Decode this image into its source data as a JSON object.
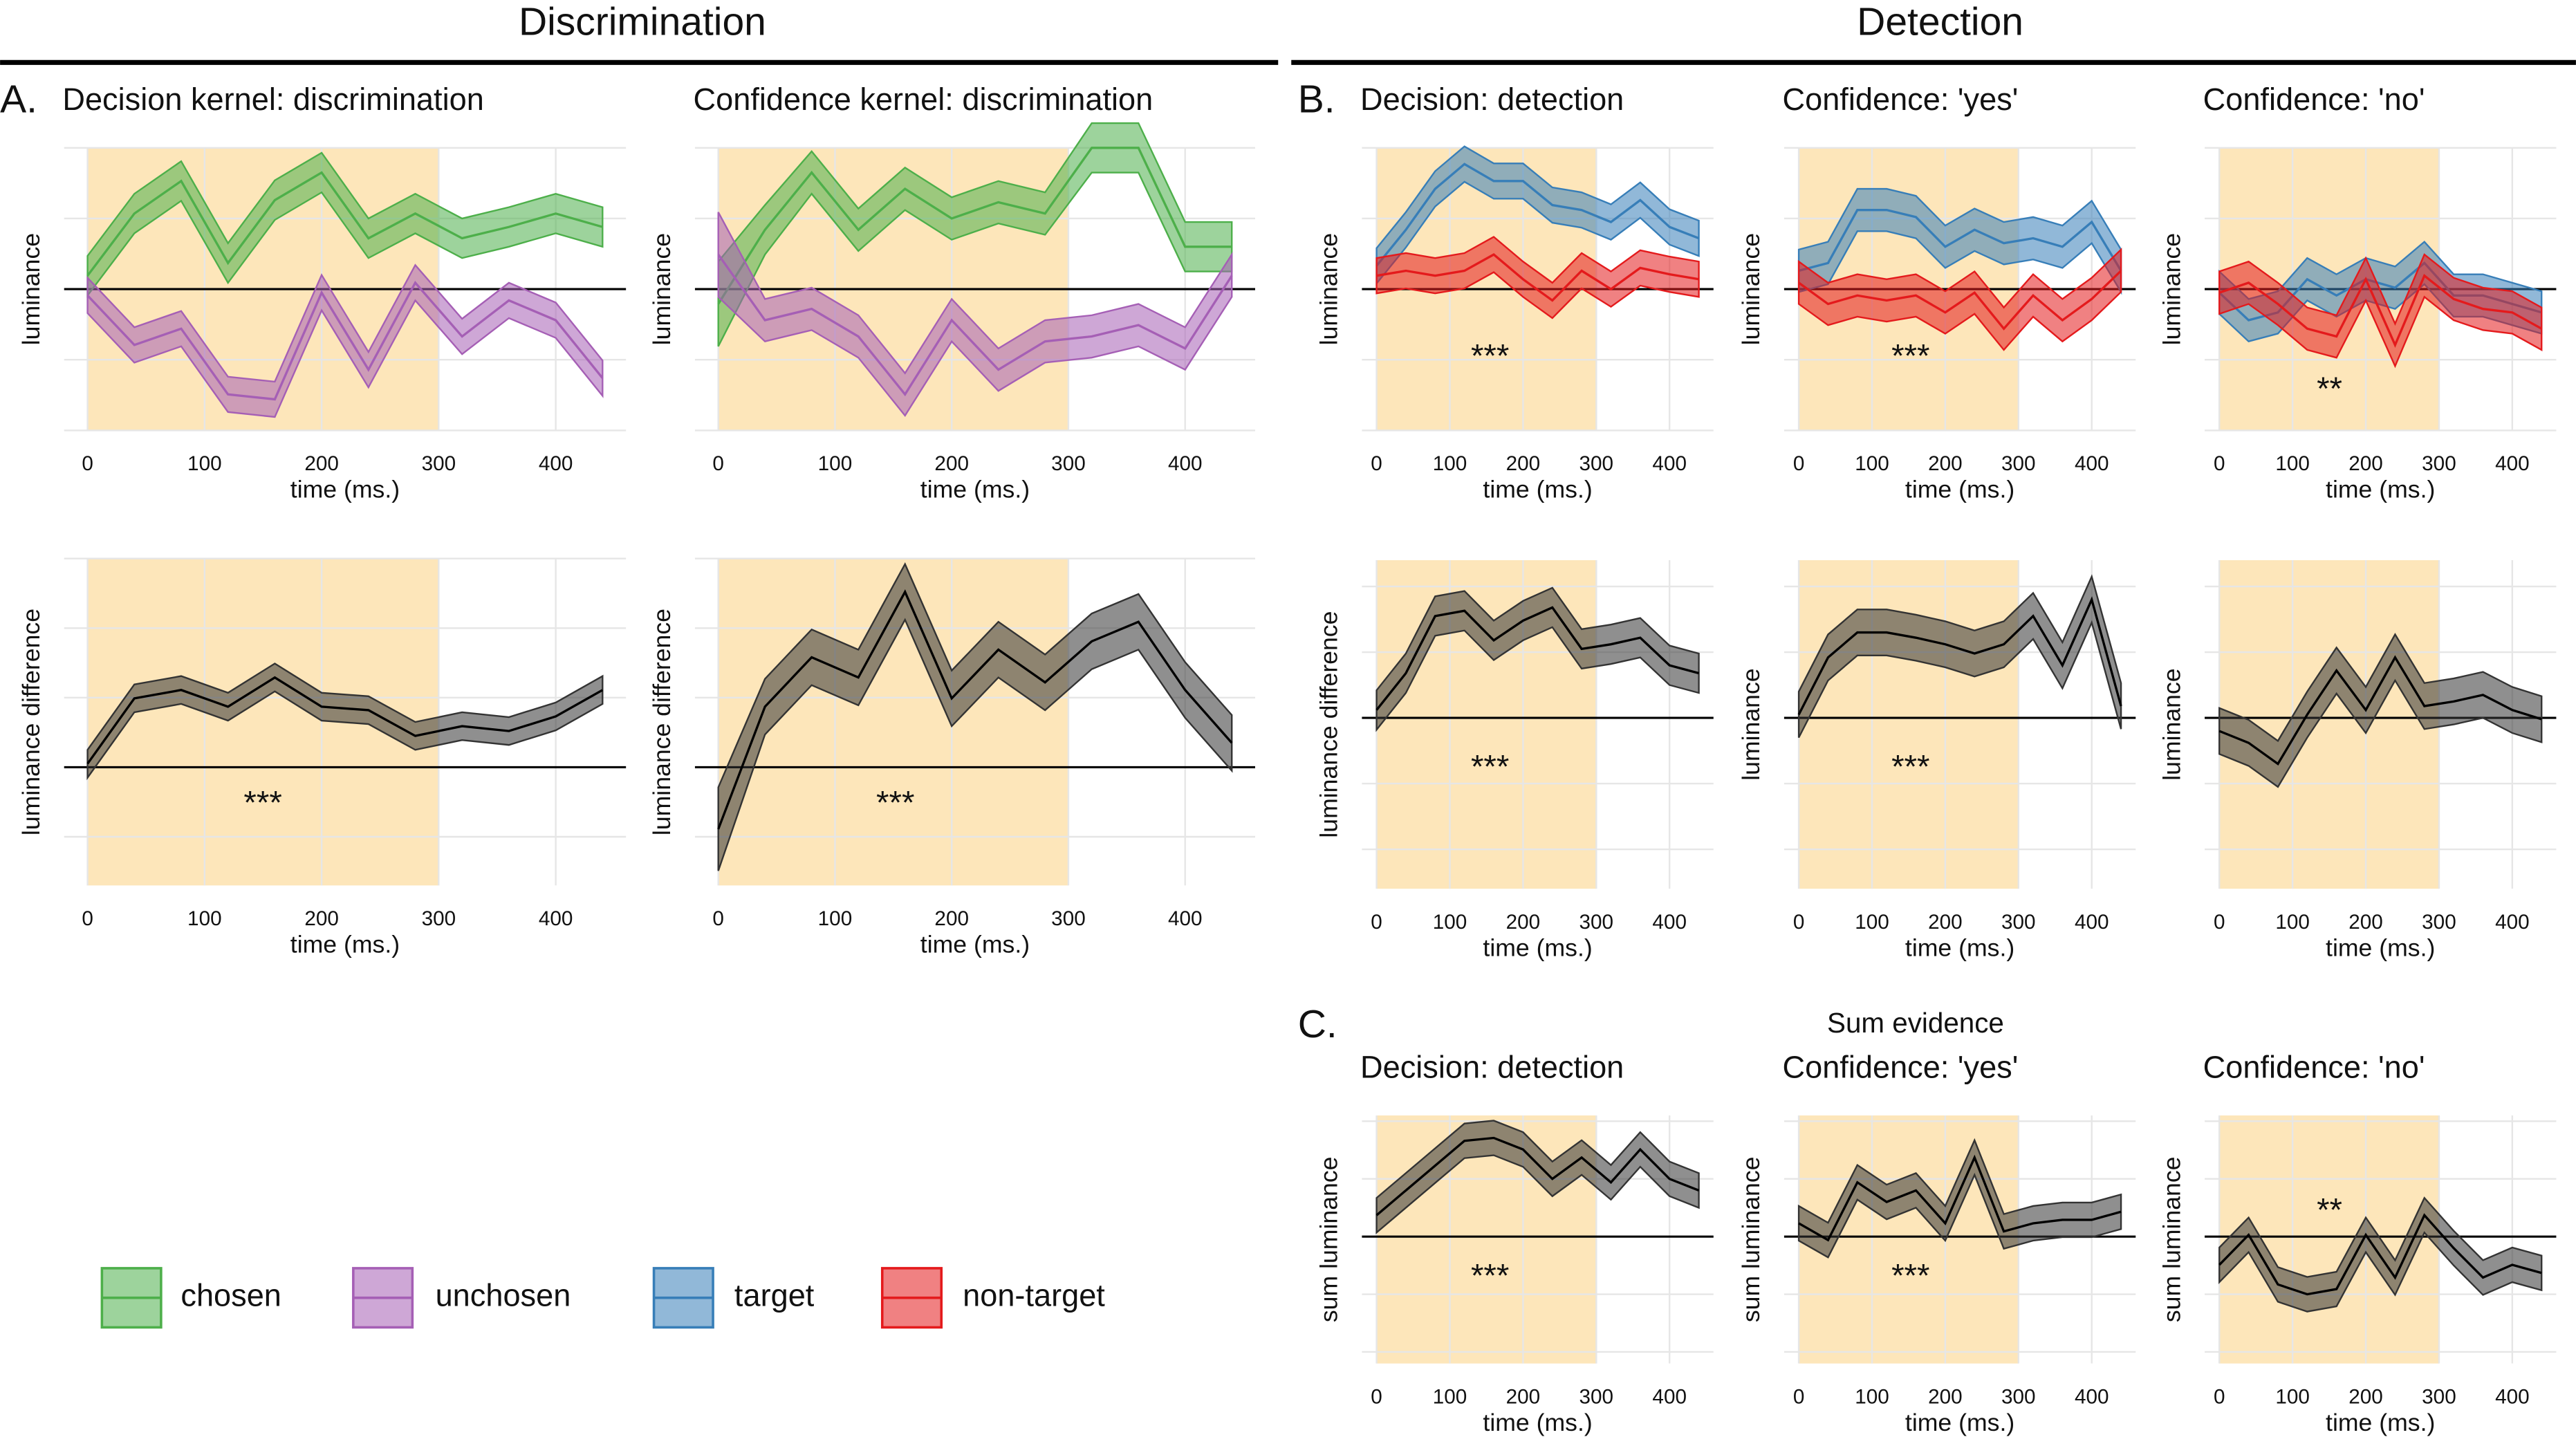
{
  "headers": {
    "left": "Discrimination",
    "right": "Detection",
    "letter_a": "A.",
    "letter_b": "B.",
    "letter_c": "C.",
    "sum_evidence": "Sum evidence"
  },
  "legend": [
    {
      "name": "chosen",
      "color": "#4daf4a"
    },
    {
      "name": "unchosen",
      "color": "#a55fb5"
    },
    {
      "name": "target",
      "color": "#377eb8"
    },
    {
      "name": "non-target",
      "color": "#e41a1c"
    }
  ],
  "chart_data": [
    {
      "type": "line",
      "title": "Decision kernel: discrimination",
      "xlabel": "time (ms.)",
      "ylabel": "luminance",
      "x": [
        0,
        40,
        80,
        120,
        160,
        200,
        240,
        280,
        320,
        360,
        400,
        440
      ],
      "xlim": [
        -20,
        460
      ],
      "xticks": [
        0,
        100,
        200,
        300,
        400
      ],
      "ylim": [
        -2,
        2
      ],
      "yticks": [
        -2,
        -1,
        0,
        1,
        2
      ],
      "highlight": [
        0,
        300
      ],
      "highlight_color": "#fbd58c",
      "grid": true,
      "series": [
        {
          "name": "chosen",
          "color": "#4daf4a",
          "values": [
            0.19,
            1.07,
            1.53,
            0.37,
            1.26,
            1.65,
            0.72,
            1.07,
            0.72,
            0.88,
            1.07,
            0.88
          ],
          "errors": [
            0.28,
            0.28,
            0.28,
            0.28,
            0.28,
            0.28,
            0.28,
            0.28,
            0.28,
            0.28,
            0.28,
            0.28
          ]
        },
        {
          "name": "unchosen",
          "color": "#a55fb5",
          "values": [
            -0.09,
            -0.79,
            -0.56,
            -1.49,
            -1.56,
            -0.05,
            -1.14,
            0.09,
            -0.67,
            -0.16,
            -0.44,
            -1.26
          ],
          "errors": [
            0.25,
            0.25,
            0.25,
            0.25,
            0.25,
            0.25,
            0.25,
            0.25,
            0.25,
            0.25,
            0.25,
            0.25
          ]
        }
      ]
    },
    {
      "type": "line",
      "title": "Confidence kernel: discrimination",
      "xlabel": "time (ms.)",
      "ylabel": "luminance",
      "x": [
        0,
        40,
        80,
        120,
        160,
        200,
        240,
        280,
        320,
        360,
        400,
        440
      ],
      "xlim": [
        -20,
        460
      ],
      "xticks": [
        0,
        100,
        200,
        300,
        400
      ],
      "ylim": [
        -2,
        2
      ],
      "yticks": [
        -2,
        -1,
        0,
        1,
        2
      ],
      "highlight": [
        0,
        300
      ],
      "highlight_color": "#fbd58c",
      "grid": true,
      "series": [
        {
          "name": "chosen",
          "color": "#4daf4a",
          "values": [
            -0.21,
            0.84,
            1.65,
            0.84,
            1.42,
            1.0,
            1.23,
            1.07,
            2.0,
            2.0,
            0.6,
            0.6
          ],
          "errors": [
            0.6,
            0.35,
            0.3,
            0.3,
            0.3,
            0.3,
            0.3,
            0.3,
            0.35,
            0.35,
            0.35,
            0.35
          ]
        },
        {
          "name": "unchosen",
          "color": "#a55fb5",
          "values": [
            0.49,
            -0.44,
            -0.28,
            -0.67,
            -1.49,
            -0.44,
            -1.14,
            -0.74,
            -0.67,
            -0.51,
            -0.84,
            0.19
          ],
          "errors": [
            0.6,
            0.3,
            0.3,
            0.3,
            0.3,
            0.3,
            0.3,
            0.3,
            0.3,
            0.3,
            0.3,
            0.3
          ]
        }
      ]
    },
    {
      "type": "line",
      "xlabel": "time (ms.)",
      "ylabel": "luminance difference",
      "annotation": "***",
      "x": [
        0,
        40,
        80,
        120,
        160,
        200,
        240,
        280,
        320,
        360,
        400,
        440
      ],
      "xlim": [
        -20,
        460
      ],
      "xticks": [
        0,
        100,
        200,
        300,
        400
      ],
      "ylim": [
        -1.7,
        3
      ],
      "yticks": [
        -1,
        0,
        1,
        2,
        3
      ],
      "highlight": [
        0,
        300
      ],
      "highlight_color": "#fbd58c",
      "grid": true,
      "series": [
        {
          "color": "#333333",
          "values": [
            0.05,
            0.99,
            1.11,
            0.87,
            1.29,
            0.87,
            0.82,
            0.45,
            0.59,
            0.52,
            0.73,
            1.11
          ],
          "errors": [
            0.2,
            0.2,
            0.2,
            0.2,
            0.2,
            0.2,
            0.2,
            0.2,
            0.2,
            0.2,
            0.2,
            0.2
          ]
        }
      ]
    },
    {
      "type": "line",
      "xlabel": "time (ms.)",
      "ylabel": "luminance difference",
      "annotation": "***",
      "x": [
        0,
        40,
        80,
        120,
        160,
        200,
        240,
        280,
        320,
        360,
        400,
        440
      ],
      "xlim": [
        -20,
        460
      ],
      "xticks": [
        0,
        100,
        200,
        300,
        400
      ],
      "ylim": [
        -1.7,
        3
      ],
      "yticks": [
        -1,
        0,
        1,
        2,
        3
      ],
      "highlight": [
        0,
        300
      ],
      "highlight_color": "#fbd58c",
      "grid": true,
      "series": [
        {
          "color": "#333333",
          "values": [
            -0.89,
            0.87,
            1.58,
            1.29,
            2.52,
            0.99,
            1.69,
            1.22,
            1.81,
            2.09,
            1.11,
            0.35
          ],
          "errors": [
            0.6,
            0.4,
            0.4,
            0.4,
            0.4,
            0.4,
            0.4,
            0.4,
            0.4,
            0.4,
            0.4,
            0.4
          ]
        }
      ]
    },
    {
      "type": "line",
      "title": "Decision: detection",
      "xlabel": "time (ms.)",
      "ylabel": "luminance",
      "annotation": "***",
      "x": [
        0,
        40,
        80,
        120,
        160,
        200,
        240,
        280,
        320,
        360,
        400,
        440
      ],
      "xlim": [
        -20,
        460
      ],
      "xticks": [
        0,
        100,
        200,
        300,
        400
      ],
      "ylim": [
        -2,
        2
      ],
      "yticks": [
        -2,
        -1,
        0,
        1,
        2
      ],
      "highlight": [
        0,
        300
      ],
      "highlight_color": "#fbd58c",
      "grid": true,
      "series": [
        {
          "name": "target",
          "color": "#377eb8",
          "values": [
            0.33,
            0.84,
            1.42,
            1.77,
            1.53,
            1.53,
            1.19,
            1.12,
            0.95,
            1.26,
            0.88,
            0.72
          ],
          "errors": [
            0.25,
            0.25,
            0.25,
            0.25,
            0.25,
            0.25,
            0.25,
            0.25,
            0.25,
            0.25,
            0.25,
            0.25
          ]
        },
        {
          "name": "non-target",
          "color": "#e41a1c",
          "values": [
            0.19,
            0.26,
            0.19,
            0.26,
            0.49,
            0.14,
            -0.16,
            0.26,
            0,
            0.3,
            0.21,
            0.14
          ],
          "errors": [
            0.25,
            0.25,
            0.25,
            0.25,
            0.25,
            0.25,
            0.25,
            0.25,
            0.25,
            0.25,
            0.25,
            0.25
          ]
        }
      ]
    },
    {
      "type": "line",
      "title": "Confidence: 'yes'",
      "xlabel": "time (ms.)",
      "ylabel": "luminance",
      "annotation": "***",
      "x": [
        0,
        40,
        80,
        120,
        160,
        200,
        240,
        280,
        320,
        360,
        400,
        440
      ],
      "xlim": [
        -20,
        460
      ],
      "xticks": [
        0,
        100,
        200,
        300,
        400
      ],
      "ylim": [
        -2,
        2
      ],
      "yticks": [
        -2,
        -1,
        0,
        1,
        2
      ],
      "highlight": [
        0,
        300
      ],
      "highlight_color": "#fbd58c",
      "grid": true,
      "series": [
        {
          "name": "target",
          "color": "#377eb8",
          "values": [
            0.26,
            0.37,
            1.12,
            1.12,
            1.02,
            0.6,
            0.84,
            0.65,
            0.72,
            0.6,
            0.95,
            0.26
          ],
          "errors": [
            0.3,
            0.3,
            0.3,
            0.3,
            0.3,
            0.3,
            0.3,
            0.3,
            0.3,
            0.3,
            0.3,
            0.3
          ]
        },
        {
          "name": "non-target",
          "color": "#e41a1c",
          "values": [
            0.09,
            -0.21,
            -0.09,
            -0.16,
            -0.09,
            -0.33,
            -0.05,
            -0.56,
            -0.09,
            -0.44,
            -0.14,
            0.26
          ],
          "errors": [
            0.3,
            0.3,
            0.3,
            0.3,
            0.3,
            0.3,
            0.3,
            0.3,
            0.3,
            0.3,
            0.3,
            0.3
          ]
        }
      ]
    },
    {
      "type": "line",
      "title": "Confidence: 'no'",
      "xlabel": "time (ms.)",
      "ylabel": "luminance",
      "annotation": "**",
      "x": [
        0,
        40,
        80,
        120,
        160,
        200,
        240,
        280,
        320,
        360,
        400,
        440
      ],
      "xlim": [
        -20,
        460
      ],
      "xticks": [
        0,
        100,
        200,
        300,
        400
      ],
      "ylim": [
        -2,
        2
      ],
      "yticks": [
        -2,
        -1,
        0,
        1,
        2
      ],
      "highlight": [
        0,
        300
      ],
      "highlight_color": "#fbd58c",
      "grid": true,
      "series": [
        {
          "name": "target",
          "color": "#377eb8",
          "values": [
            -0.05,
            -0.44,
            -0.33,
            0.14,
            -0.09,
            0.14,
            0.02,
            0.37,
            -0.09,
            -0.09,
            -0.21,
            -0.33
          ],
          "errors": [
            0.3,
            0.3,
            0.3,
            0.3,
            0.3,
            0.3,
            0.3,
            0.3,
            0.3,
            0.3,
            0.3,
            0.3
          ]
        },
        {
          "name": "non-target",
          "color": "#e41a1c",
          "values": [
            -0.05,
            0.09,
            -0.21,
            -0.56,
            -0.67,
            0.14,
            -0.79,
            0.19,
            -0.14,
            -0.28,
            -0.33,
            -0.56
          ],
          "errors": [
            0.3,
            0.3,
            0.3,
            0.3,
            0.3,
            0.3,
            0.3,
            0.3,
            0.3,
            0.3,
            0.3,
            0.3
          ]
        }
      ]
    },
    {
      "type": "line",
      "xlabel": "time (ms.)",
      "ylabel": "luminance difference",
      "annotation": "***",
      "x": [
        0,
        40,
        80,
        120,
        160,
        200,
        240,
        280,
        320,
        360,
        400,
        440
      ],
      "xlim": [
        -20,
        460
      ],
      "xticks": [
        0,
        100,
        200,
        300,
        400
      ],
      "ylim": [
        -2.6,
        2.4
      ],
      "yticks": [
        -2,
        -1,
        0,
        1,
        2
      ],
      "highlight": [
        0,
        300
      ],
      "highlight_color": "#fbd58c",
      "grid": true,
      "series": [
        {
          "color": "#333333",
          "values": [
            0.12,
            0.68,
            1.55,
            1.63,
            1.18,
            1.48,
            1.68,
            1.05,
            1.12,
            1.22,
            0.8,
            0.68
          ],
          "errors": [
            0.3,
            0.3,
            0.3,
            0.3,
            0.3,
            0.3,
            0.3,
            0.3,
            0.3,
            0.3,
            0.3,
            0.3
          ]
        }
      ]
    },
    {
      "type": "line",
      "xlabel": "time (ms.)",
      "ylabel": "luminance",
      "annotation": "***",
      "x": [
        0,
        40,
        80,
        120,
        160,
        200,
        240,
        280,
        320,
        360,
        400,
        440
      ],
      "xlim": [
        -20,
        460
      ],
      "xticks": [
        0,
        100,
        200,
        300,
        400
      ],
      "ylim": [
        -2.6,
        2.4
      ],
      "yticks": [
        -2,
        -1,
        0,
        1,
        2
      ],
      "highlight": [
        0,
        300
      ],
      "highlight_color": "#fbd58c",
      "grid": true,
      "series": [
        {
          "color": "#333333",
          "values": [
            0.05,
            0.92,
            1.3,
            1.3,
            1.22,
            1.12,
            0.98,
            1.12,
            1.55,
            0.8,
            1.8,
            0.18
          ],
          "errors": [
            0.35,
            0.35,
            0.35,
            0.35,
            0.35,
            0.35,
            0.35,
            0.35,
            0.35,
            0.35,
            0.35,
            0.35
          ]
        }
      ]
    },
    {
      "type": "line",
      "xlabel": "time (ms.)",
      "ylabel": "luminance",
      "x": [
        0,
        40,
        80,
        120,
        160,
        200,
        240,
        280,
        320,
        360,
        400,
        440
      ],
      "xlim": [
        -20,
        460
      ],
      "xticks": [
        0,
        100,
        200,
        300,
        400
      ],
      "ylim": [
        -2.6,
        2.4
      ],
      "yticks": [
        -2,
        -1,
        0,
        1,
        2
      ],
      "highlight": [
        0,
        300
      ],
      "highlight_color": "#fbd58c",
      "grid": true,
      "series": [
        {
          "color": "#333333",
          "values": [
            -0.2,
            -0.38,
            -0.7,
            0.05,
            0.72,
            0.12,
            0.92,
            0.18,
            0.25,
            0.35,
            0.12,
            -0.02
          ],
          "errors": [
            0.35,
            0.35,
            0.35,
            0.35,
            0.35,
            0.35,
            0.35,
            0.35,
            0.35,
            0.35,
            0.35,
            0.35
          ]
        }
      ]
    },
    {
      "type": "line",
      "title": "Decision: detection",
      "xlabel": "time (ms.)",
      "ylabel": "sum luminance",
      "annotation": "***",
      "x": [
        0,
        40,
        80,
        120,
        160,
        200,
        240,
        280,
        320,
        360,
        400,
        440
      ],
      "xlim": [
        -20,
        460
      ],
      "xticks": [
        0,
        100,
        200,
        300,
        400
      ],
      "ylim": [
        -2.2,
        2.1
      ],
      "yticks": [
        -2,
        -1,
        0,
        1,
        2
      ],
      "highlight": [
        0,
        300
      ],
      "highlight_color": "#fbd58c",
      "grid": true,
      "series": [
        {
          "color": "#333333",
          "values": [
            0.37,
            0.8,
            1.23,
            1.66,
            1.71,
            1.51,
            1.0,
            1.37,
            0.94,
            1.51,
            1.0,
            0.8
          ],
          "errors": [
            0.3,
            0.3,
            0.3,
            0.3,
            0.3,
            0.3,
            0.3,
            0.3,
            0.3,
            0.3,
            0.3,
            0.3
          ]
        }
      ]
    },
    {
      "type": "line",
      "title": "Confidence: 'yes'",
      "xlabel": "time (ms.)",
      "ylabel": "sum luminance",
      "annotation": "***",
      "x": [
        0,
        40,
        80,
        120,
        160,
        200,
        240,
        280,
        320,
        360,
        400,
        440
      ],
      "xlim": [
        -20,
        460
      ],
      "xticks": [
        0,
        100,
        200,
        300,
        400
      ],
      "ylim": [
        -2.2,
        2.1
      ],
      "yticks": [
        -2,
        -1,
        0,
        1,
        2
      ],
      "highlight": [
        0,
        300
      ],
      "highlight_color": "#fbd58c",
      "grid": true,
      "series": [
        {
          "color": "#333333",
          "values": [
            0.23,
            -0.06,
            0.94,
            0.6,
            0.8,
            0.23,
            1.37,
            0.09,
            0.23,
            0.29,
            0.29,
            0.43
          ],
          "errors": [
            0.3,
            0.3,
            0.3,
            0.3,
            0.3,
            0.3,
            0.3,
            0.3,
            0.3,
            0.3,
            0.3,
            0.3
          ]
        }
      ]
    },
    {
      "type": "line",
      "title": "Confidence: 'no'",
      "xlabel": "time (ms.)",
      "ylabel": "sum luminance",
      "annotation": "**",
      "x": [
        0,
        40,
        80,
        120,
        160,
        200,
        240,
        280,
        320,
        360,
        400,
        440
      ],
      "xlim": [
        -20,
        460
      ],
      "xticks": [
        0,
        100,
        200,
        300,
        400
      ],
      "ylim": [
        -2.2,
        2.1
      ],
      "yticks": [
        -2,
        -1,
        0,
        1,
        2
      ],
      "highlight": [
        0,
        300
      ],
      "highlight_color": "#fbd58c",
      "grid": true,
      "series": [
        {
          "color": "#333333",
          "values": [
            -0.49,
            0.03,
            -0.83,
            -1.0,
            -0.91,
            0.03,
            -0.71,
            0.37,
            -0.2,
            -0.71,
            -0.49,
            -0.63
          ],
          "errors": [
            0.3,
            0.3,
            0.3,
            0.3,
            0.3,
            0.3,
            0.3,
            0.3,
            0.3,
            0.3,
            0.3,
            0.3
          ]
        }
      ]
    }
  ]
}
